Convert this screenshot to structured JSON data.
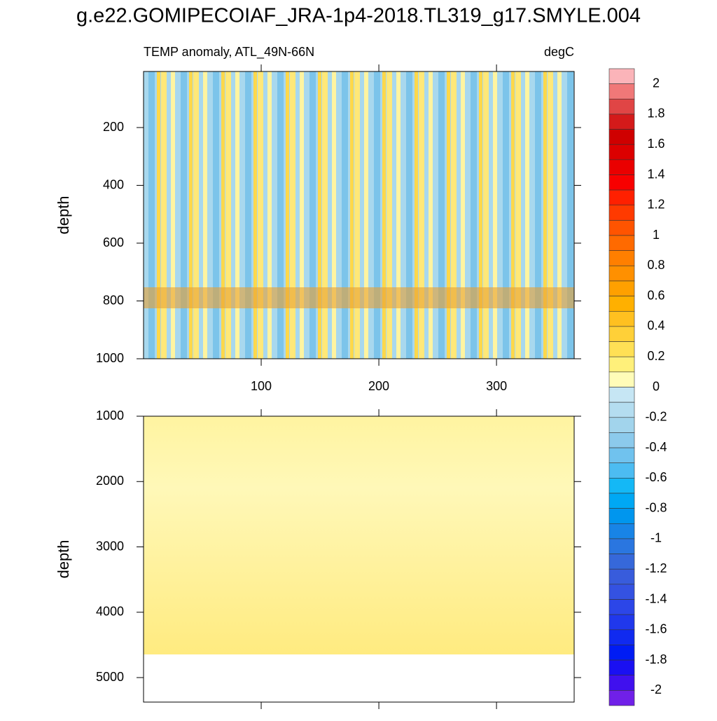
{
  "chart_data": {
    "type": "contour",
    "title": "g.e22.GOMIPECOIAF_JRA-1p4-2018.TL319_g17.SMYLE.004",
    "subtitle_left": "TEMP anomaly, ATL_49N-66N",
    "subtitle_right": "degC",
    "panels": [
      {
        "ylabel": "depth",
        "xlim": [
          0,
          366
        ],
        "xticks": [
          100,
          200,
          300
        ],
        "show_xtick_labels": true,
        "ylim": [
          6,
          1000
        ],
        "yticks": [
          200,
          400,
          600,
          800,
          1000
        ],
        "yreverse": true
      },
      {
        "ylabel": "depth",
        "xlim": [
          0,
          366
        ],
        "xticks": [
          100,
          200,
          300
        ],
        "show_xtick_labels": false,
        "ylim": [
          1000,
          5375
        ],
        "yticks": [
          1000,
          2000,
          3000,
          4000,
          5000
        ],
        "yreverse": true
      }
    ],
    "colorbar": {
      "labels": [
        2,
        1.8,
        1.6,
        1.4,
        1.2,
        1,
        0.8,
        0.6,
        0.4,
        0.2,
        0,
        -0.2,
        -0.4,
        -0.6,
        -0.8,
        -1,
        -1.2,
        -1.4,
        -1.6,
        -1.8,
        -2
      ],
      "colors": [
        "#fbb4b9",
        "#f07878",
        "#e04545",
        "#d41a1a",
        "#cf0000",
        "#dc0000",
        "#ea0000",
        "#f80000",
        "#ff2000",
        "#ff3a00",
        "#ff5400",
        "#ff6a00",
        "#ff7f00",
        "#ff9000",
        "#ffa000",
        "#ffb000",
        "#ffc020",
        "#ffd038",
        "#ffe055",
        "#fff07a",
        "#fffcb8",
        "#c6e6f4",
        "#b4ddf0",
        "#a2d4ec",
        "#8ccaec",
        "#70c2ee",
        "#4cbcf2",
        "#14b8f6",
        "#00a8f4",
        "#0096ee",
        "#1884e6",
        "#2a76e0",
        "#3668da",
        "#385cdc",
        "#3452e2",
        "#2c46e8",
        "#2038ec",
        "#102af0",
        "#001cf4",
        "#1a10f2",
        "#4010ee",
        "#7020e8"
      ]
    }
  }
}
